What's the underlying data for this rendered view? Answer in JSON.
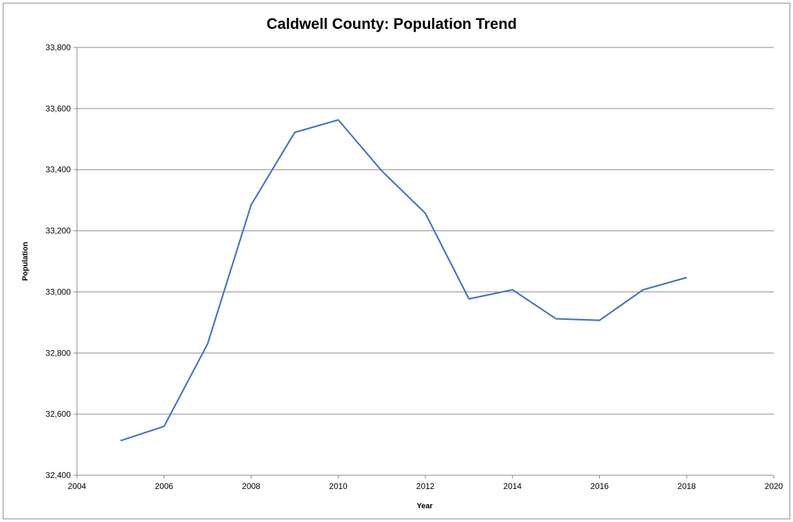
{
  "chart_data": {
    "type": "line",
    "title": "Caldwell County: Population Trend",
    "xlabel": "Year",
    "ylabel": "Population",
    "xlim": [
      2004,
      2020
    ],
    "ylim": [
      32400,
      33800
    ],
    "x_ticks": [
      2004,
      2006,
      2008,
      2010,
      2012,
      2014,
      2016,
      2018,
      2020
    ],
    "y_ticks": [
      32400,
      32600,
      32800,
      33000,
      33200,
      33400,
      33600,
      33800
    ],
    "y_tick_labels": [
      "32,400",
      "32,600",
      "32,800",
      "33,000",
      "33,200",
      "33,400",
      "33,600",
      "33,800"
    ],
    "grid": "horizontal",
    "legend": "none",
    "series": [
      {
        "color": "#4472c4",
        "x": [
          2005,
          2006,
          2007,
          2008,
          2009,
          2010,
          2011,
          2012,
          2013,
          2014,
          2015,
          2016,
          2017,
          2018
        ],
        "y": [
          32513,
          32560,
          32830,
          33285,
          33522,
          33563,
          33396,
          33257,
          32977,
          33007,
          32912,
          32907,
          33007,
          33047
        ]
      }
    ],
    "colors": {
      "line": "#4472c4",
      "grid": "#868686",
      "axis": "#868686"
    }
  }
}
